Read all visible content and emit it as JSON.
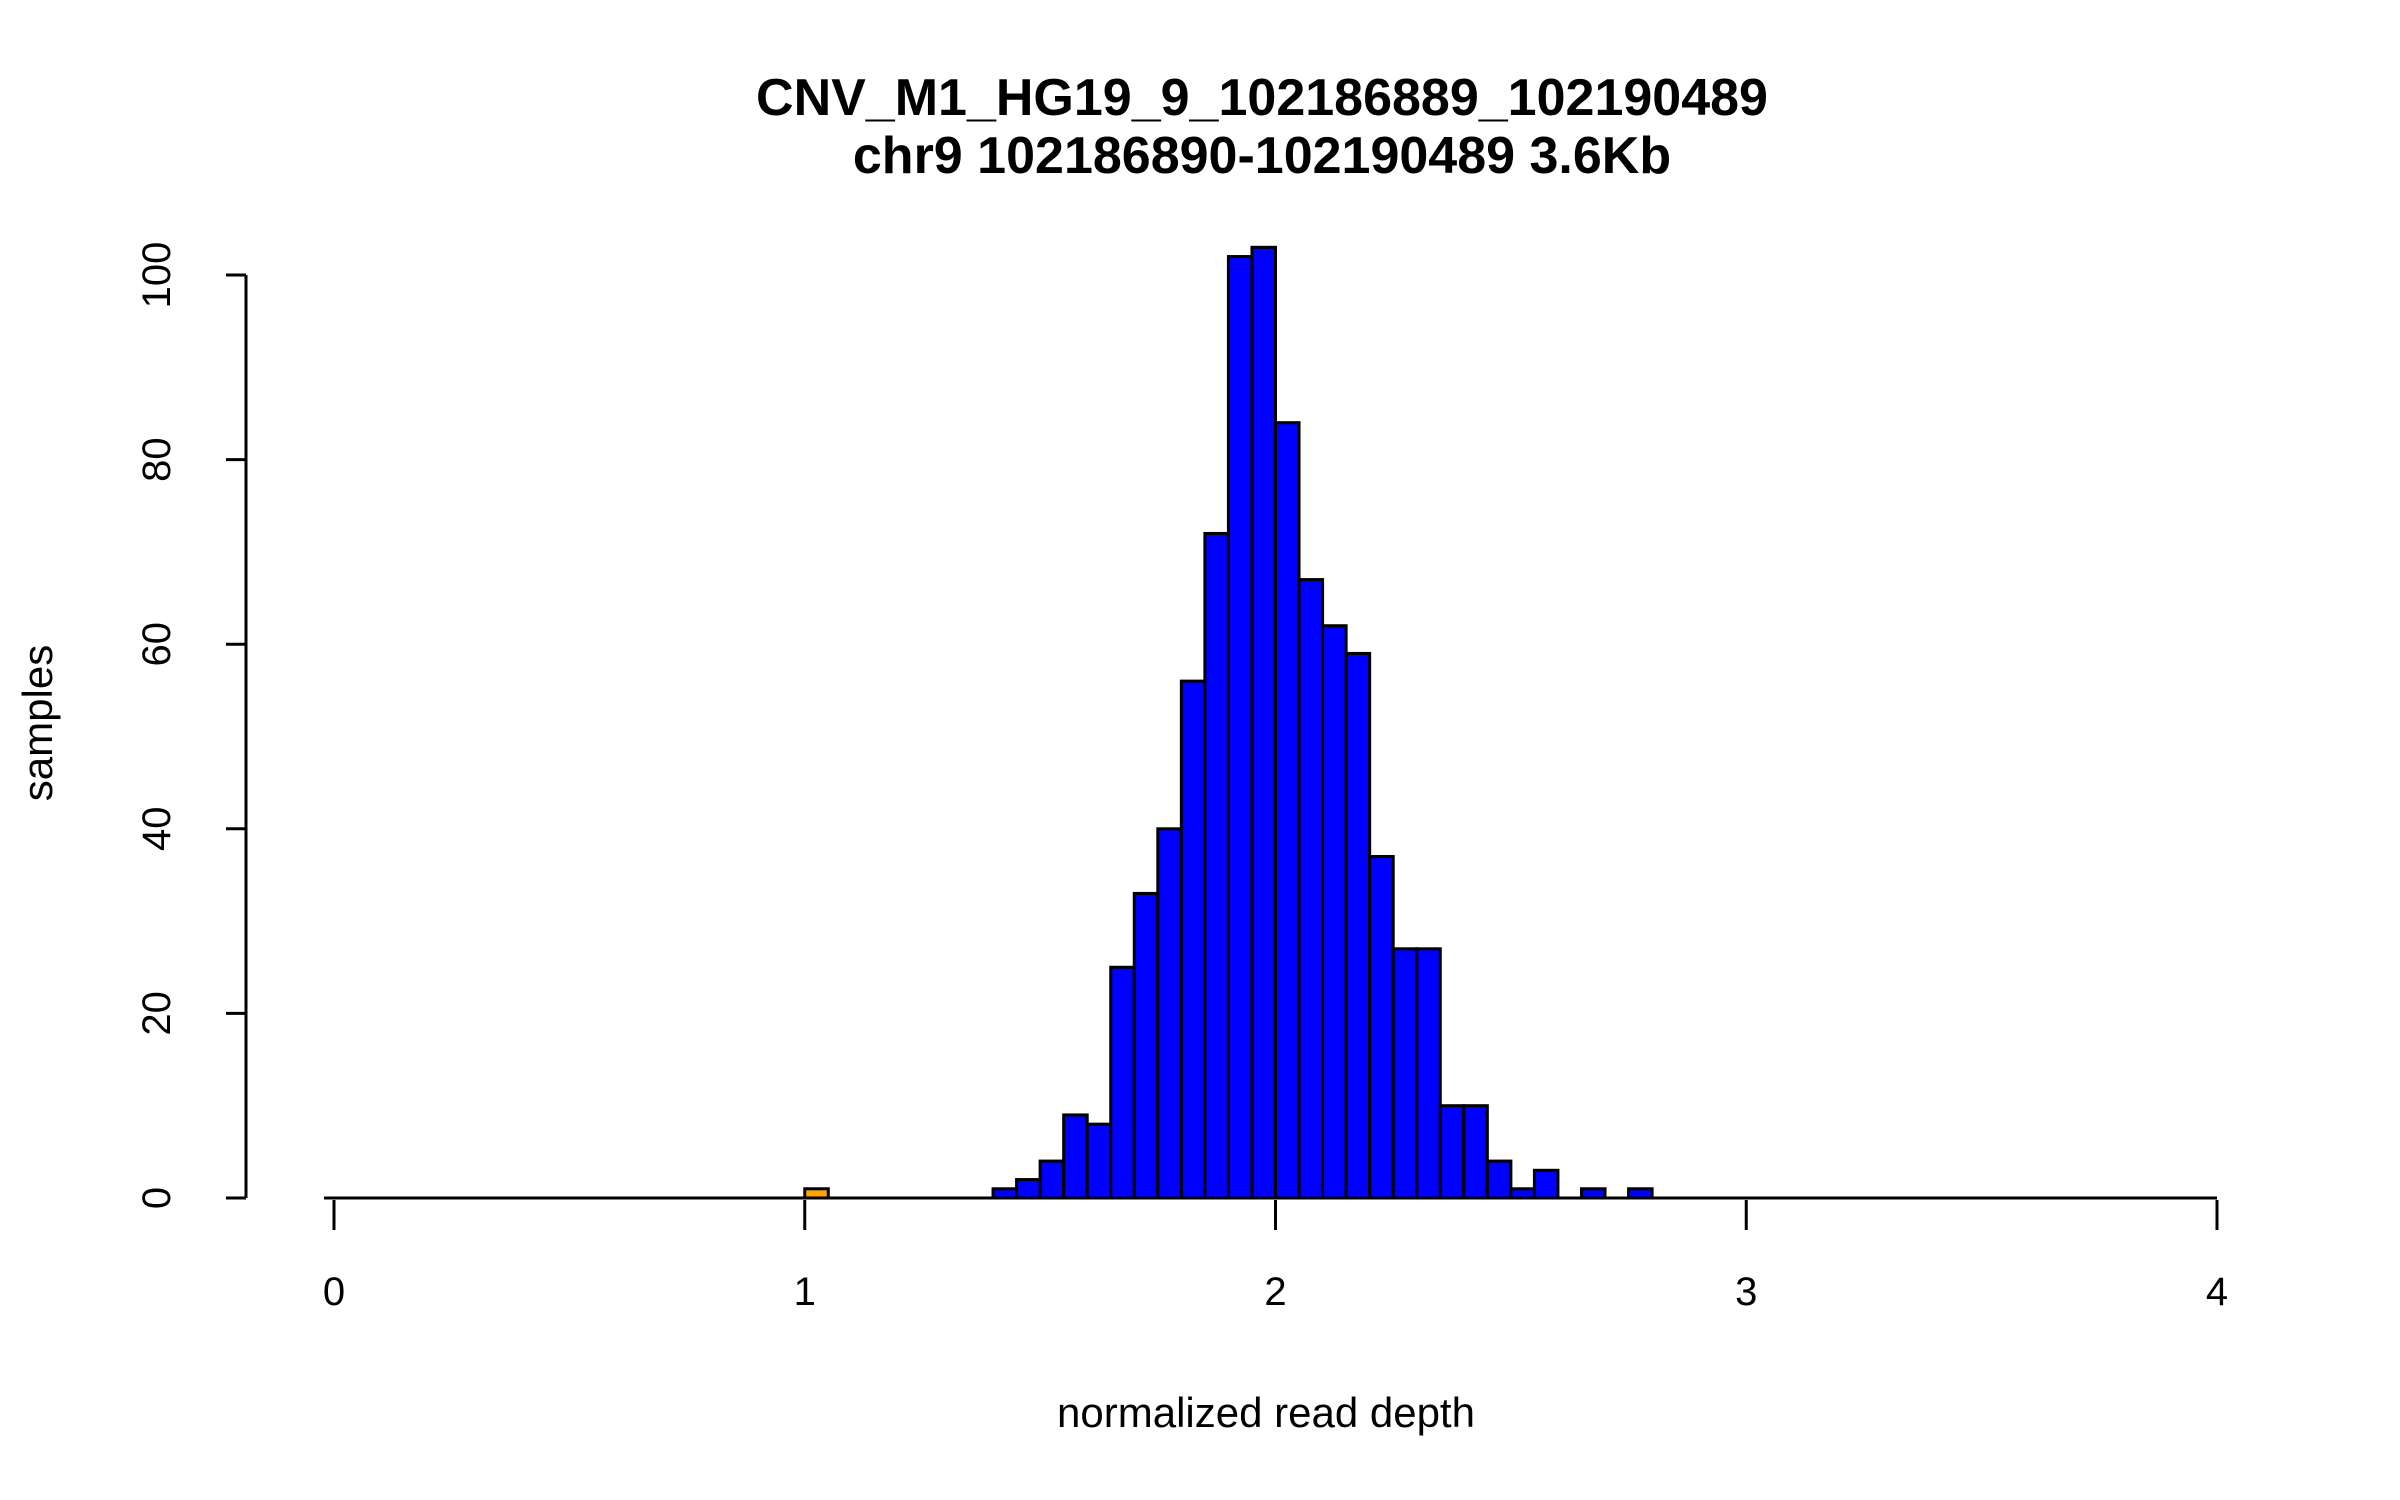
{
  "chart_data": {
    "type": "bar",
    "title": "CNV_M1_HG19_9_102186889_102190489",
    "subtitle": "chr9 102186890-102190489 3.6Kb",
    "xlabel": "normalized read depth",
    "ylabel": "samples",
    "xlim": [
      0,
      4
    ],
    "ylim": [
      0,
      100
    ],
    "xticks": [
      "0",
      "1",
      "2",
      "3",
      "4"
    ],
    "yticks": [
      "0",
      "20",
      "40",
      "60",
      "80",
      "100"
    ],
    "bin_width": 0.05,
    "colors": {
      "bar": "#0000FF",
      "highlight": "#FFA500",
      "outline": "#000000"
    },
    "bins": [
      {
        "start": 1.0,
        "count": 1,
        "highlight": true
      },
      {
        "start": 1.4,
        "count": 1
      },
      {
        "start": 1.45,
        "count": 2
      },
      {
        "start": 1.5,
        "count": 4
      },
      {
        "start": 1.55,
        "count": 9
      },
      {
        "start": 1.6,
        "count": 8
      },
      {
        "start": 1.65,
        "count": 25
      },
      {
        "start": 1.7,
        "count": 33
      },
      {
        "start": 1.75,
        "count": 40
      },
      {
        "start": 1.8,
        "count": 56
      },
      {
        "start": 1.85,
        "count": 72
      },
      {
        "start": 1.9,
        "count": 102
      },
      {
        "start": 1.95,
        "count": 103
      },
      {
        "start": 2.0,
        "count": 84
      },
      {
        "start": 2.05,
        "count": 67
      },
      {
        "start": 2.1,
        "count": 62
      },
      {
        "start": 2.15,
        "count": 59
      },
      {
        "start": 2.2,
        "count": 37
      },
      {
        "start": 2.25,
        "count": 27
      },
      {
        "start": 2.3,
        "count": 27
      },
      {
        "start": 2.35,
        "count": 10
      },
      {
        "start": 2.4,
        "count": 10
      },
      {
        "start": 2.45,
        "count": 4
      },
      {
        "start": 2.5,
        "count": 1
      },
      {
        "start": 2.55,
        "count": 3
      },
      {
        "start": 2.65,
        "count": 1
      },
      {
        "start": 2.75,
        "count": 1
      }
    ]
  }
}
